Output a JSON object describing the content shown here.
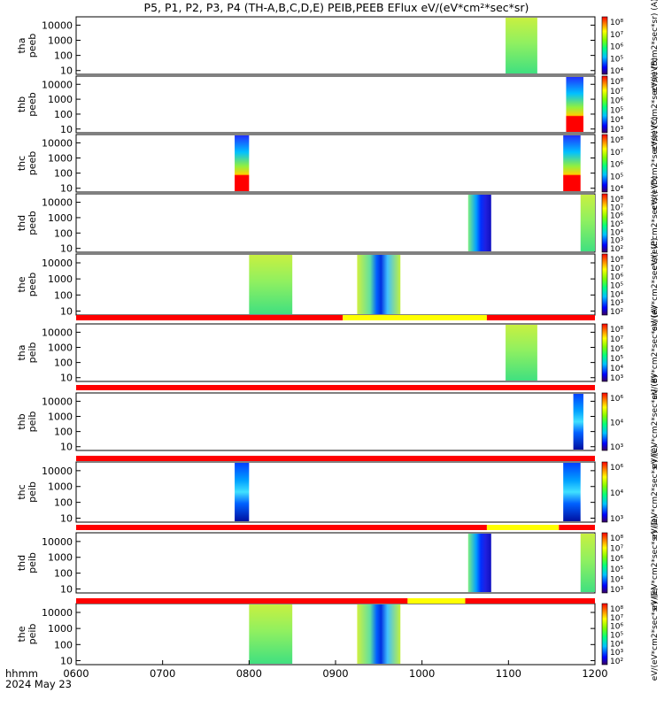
{
  "title": "P5, P1, P2, P3, P4 (TH-A,B,C,D,E) PEIB,PEEB EFlux eV/(eV*cm²*sec*sr)",
  "chart_data": {
    "type": "heatmap",
    "x_ticks": [
      "0600",
      "0700",
      "0800",
      "0900",
      "1000",
      "1100",
      "1200"
    ],
    "x_range": [
      "0600",
      "1200"
    ],
    "x_label_line1": "hhmm",
    "x_label_line2": "2024 May 23",
    "y_scale": "log",
    "y_ticks": [
      "10",
      "100",
      "1000",
      "10000"
    ],
    "panels": [
      {
        "label1": "tha",
        "label2": "peeb",
        "blocks": [
          {
            "t0": "1058",
            "t1": "1120",
            "style": "green"
          }
        ],
        "colorbar": [
          "10⁸",
          "10⁷",
          "10⁶",
          "10⁵",
          "10⁴"
        ],
        "cbar_label": "eV/(eV*cm2*sec*sr) (A)"
      },
      {
        "label1": "thb",
        "label2": "peeb",
        "blocks": [
          {
            "t0": "1140",
            "t1": "1152",
            "style": "hot"
          }
        ],
        "colorbar": [
          "10⁸",
          "10⁷",
          "10⁶",
          "10⁵",
          "10⁴",
          "10³"
        ],
        "cbar_label": "eV/(eV*cm2*sec*sr) (B)"
      },
      {
        "label1": "thc",
        "label2": "peeb",
        "blocks": [
          {
            "t0": "0750",
            "t1": "0800",
            "style": "hot"
          },
          {
            "t0": "1138",
            "t1": "1150",
            "style": "hot"
          }
        ],
        "colorbar": [
          "10⁸",
          "10⁷",
          "10⁶",
          "10⁵",
          "10⁴"
        ],
        "cbar_label": "eV/(eV*cm2*sec*sr) (C)"
      },
      {
        "label1": "thd",
        "label2": "peeb",
        "blocks": [
          {
            "t0": "1032",
            "t1": "1048",
            "style": "blue"
          },
          {
            "t0": "1150",
            "t1": "1200",
            "style": "green"
          }
        ],
        "colorbar": [
          "10⁸",
          "10⁷",
          "10⁶",
          "10⁵",
          "10⁴",
          "10³",
          "10²"
        ],
        "cbar_label": "eV/(eV*cm2*sec*sr) (D)"
      },
      {
        "label1": "the",
        "label2": "peeb",
        "blocks": [
          {
            "t0": "0800",
            "t1": "0830",
            "style": "green"
          },
          {
            "t0": "0915",
            "t1": "0945",
            "style": "bluecore"
          }
        ],
        "colorbar": [
          "10⁸",
          "10⁷",
          "10⁶",
          "10⁵",
          "10⁴",
          "10³",
          "10²"
        ],
        "cbar_label": "eV/(eV*cm2*sec*sr) (E)"
      },
      {
        "label1": "tha",
        "label2": "peib",
        "blocks": [
          {
            "t0": "1058",
            "t1": "1120",
            "style": "green"
          }
        ],
        "colorbar": [
          "10⁸",
          "10⁷",
          "10⁶",
          "10⁵",
          "10⁴",
          "10³"
        ],
        "cbar_label": "eV/(eV*cm2*sec*sr) (A)"
      },
      {
        "label1": "thb",
        "label2": "peib",
        "blocks": [
          {
            "t0": "1145",
            "t1": "1152",
            "style": "noisy"
          }
        ],
        "colorbar": [
          "10⁶",
          "10⁴",
          "10³"
        ],
        "cbar_label": "eV/(eV*cm2*sec*sr) (B)"
      },
      {
        "label1": "thc",
        "label2": "peib",
        "blocks": [
          {
            "t0": "0750",
            "t1": "0800",
            "style": "noisy"
          },
          {
            "t0": "1138",
            "t1": "1150",
            "style": "noisy"
          }
        ],
        "colorbar": [
          "10⁶",
          "10⁴",
          "10³"
        ],
        "cbar_label": "eV/(eV*cm2*sec*sr) (C)"
      },
      {
        "label1": "thd",
        "label2": "peib",
        "blocks": [
          {
            "t0": "1032",
            "t1": "1048",
            "style": "blue"
          },
          {
            "t0": "1150",
            "t1": "1200",
            "style": "green"
          }
        ],
        "colorbar": [
          "10⁸",
          "10⁷",
          "10⁶",
          "10⁵",
          "10⁴",
          "10³"
        ],
        "cbar_label": "eV/(eV*cm2*sec*sr) (D)"
      },
      {
        "label1": "the",
        "label2": "peib",
        "blocks": [
          {
            "t0": "0800",
            "t1": "0830",
            "style": "green"
          },
          {
            "t0": "0915",
            "t1": "0945",
            "style": "bluecore"
          }
        ],
        "colorbar": [
          "10⁸",
          "10⁷",
          "10⁶",
          "10⁵",
          "10⁴",
          "10³",
          "10²"
        ],
        "cbar_label": "eV/(eV*cm2*sec*sr) (E)"
      }
    ],
    "status_bars": [
      {
        "after_panel": 5,
        "segments": [
          {
            "t0": "0600",
            "t1": "0905",
            "color": "#ff0000"
          },
          {
            "t0": "0905",
            "t1": "1045",
            "color": "#ffff00"
          },
          {
            "t0": "1045",
            "t1": "1200",
            "color": "#ff0000"
          }
        ]
      },
      {
        "after_panel": 6,
        "segments": [
          {
            "t0": "0600",
            "t1": "1200",
            "color": "#ff0000"
          }
        ]
      },
      {
        "after_panel": 7,
        "segments": [
          {
            "t0": "0600",
            "t1": "1200",
            "color": "#ff0000"
          }
        ]
      },
      {
        "after_panel": 8,
        "segments": [
          {
            "t0": "0600",
            "t1": "1045",
            "color": "#ff0000"
          },
          {
            "t0": "1045",
            "t1": "1135",
            "color": "#ffff00"
          },
          {
            "t0": "1135",
            "t1": "1200",
            "color": "#ff0000"
          }
        ]
      },
      {
        "after_panel": 9,
        "segments": [
          {
            "t0": "0600",
            "t1": "0950",
            "color": "#ff0000"
          },
          {
            "t0": "0950",
            "t1": "1030",
            "color": "#ffff00"
          },
          {
            "t0": "1030",
            "t1": "1200",
            "color": "#ff0000"
          }
        ]
      }
    ]
  }
}
